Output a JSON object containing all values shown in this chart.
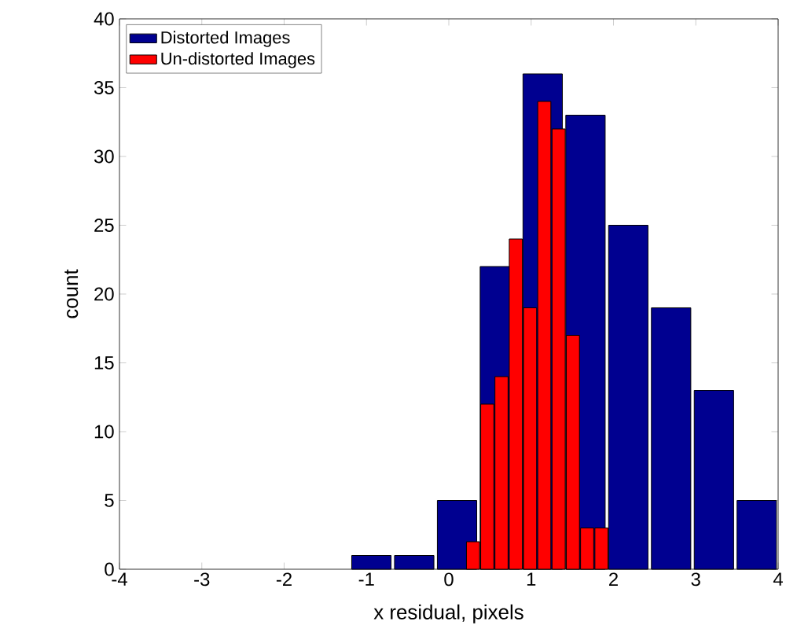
{
  "chart_data": {
    "type": "bar",
    "xlabel": "x residual, pixels",
    "ylabel": "count",
    "xlim": [
      -4,
      4
    ],
    "ylim": [
      0,
      40
    ],
    "xticks": [
      -4,
      -3,
      -2,
      -1,
      0,
      1,
      2,
      3,
      4
    ],
    "yticks": [
      0,
      5,
      10,
      15,
      20,
      25,
      30,
      35,
      40
    ],
    "legend": "top left",
    "grid": false,
    "series": [
      {
        "name": "Distorted Images",
        "color": "#000090",
        "x": [
          -0.94,
          -0.42,
          0.1,
          0.62,
          1.14,
          1.66,
          2.18,
          2.7,
          3.22,
          3.74
        ],
        "values": [
          1,
          1,
          5,
          22,
          36,
          33,
          25,
          19,
          13,
          5
        ]
      },
      {
        "name": "Un-distorted Images",
        "color": "#ff0000",
        "x": [
          0.294,
          0.467,
          0.64,
          0.814,
          0.987,
          1.16,
          1.334,
          1.507,
          1.68,
          1.854
        ],
        "values": [
          2,
          12,
          14,
          24,
          19,
          34,
          32,
          17,
          3,
          3
        ]
      }
    ]
  }
}
